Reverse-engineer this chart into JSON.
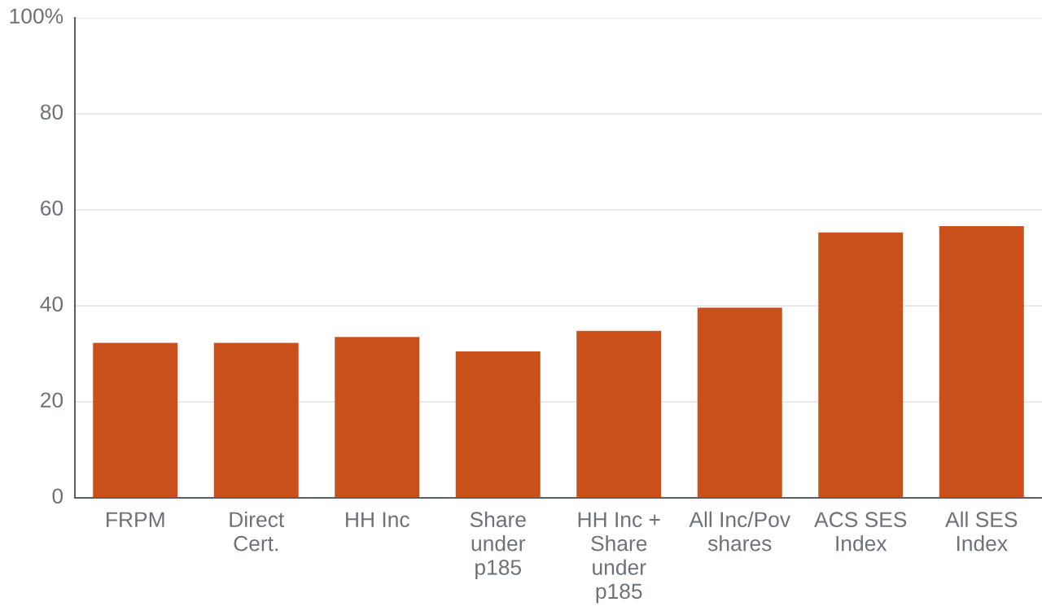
{
  "chart_data": {
    "type": "bar",
    "categories": [
      "FRPM",
      "Direct\nCert.",
      "HH Inc",
      "Share\nunder\np185",
      "HH Inc +\nShare\nunder\np185",
      "All Inc/Pov\nshares",
      "ACS SES\nIndex",
      "All SES\nIndex"
    ],
    "values": [
      32.3,
      32.3,
      33.5,
      30.5,
      34.8,
      39.6,
      55.3,
      56.6
    ],
    "color": "#c94f1b",
    "ylim": [
      0,
      100
    ],
    "yticks": [
      0,
      20,
      40,
      60,
      80,
      {
        "value": 100,
        "label": "100%"
      }
    ],
    "grid": "y"
  }
}
